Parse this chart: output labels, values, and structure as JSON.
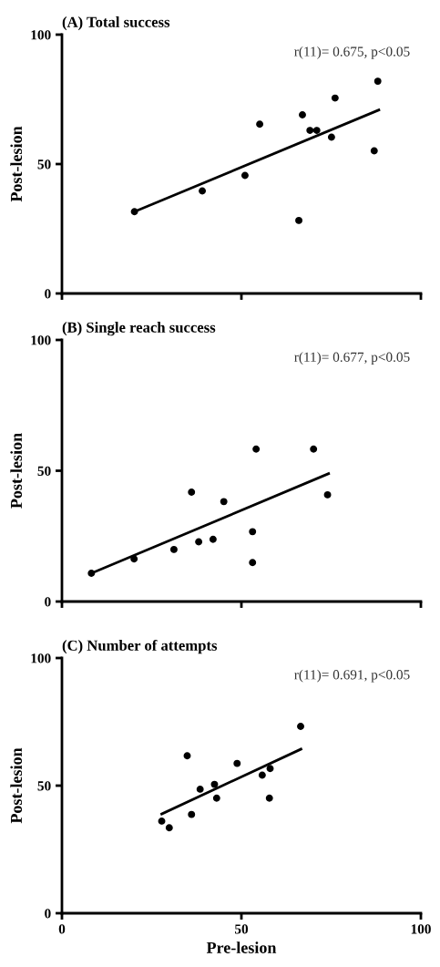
{
  "chart_data": [
    {
      "type": "scatter",
      "title": "(A) Total success",
      "ylabel": "Post-lesion",
      "annotations": [
        "r(11)= 0.675, p<0.05"
      ],
      "xlim": [
        0,
        100
      ],
      "xticks": [
        0,
        50,
        100
      ],
      "ylim": [
        0,
        100
      ],
      "yticks": [
        0,
        50,
        100
      ],
      "tick_labels": "y",
      "grid": false,
      "series": [
        {
          "color": "#000000",
          "marker": "circle",
          "x": [
            20.2,
            39.1,
            51.0,
            55.1,
            66.0,
            67.0,
            69.1,
            71.0,
            75.1,
            76.1,
            87.0,
            88.0
          ],
          "values": [
            31.6,
            39.6,
            45.6,
            65.4,
            28.2,
            69.0,
            63.0,
            63.0,
            60.4,
            75.5,
            55.1,
            82.0
          ]
        },
        {
          "type": "line",
          "color": "#000000",
          "marker": "none",
          "x": [
            20.2,
            88.3
          ],
          "values": [
            31.6,
            70.9
          ]
        }
      ]
    },
    {
      "type": "scatter",
      "title": "(B) Single reach success",
      "ylabel": "Post-lesion",
      "annotations": [
        "r(11)= 0.677, p<0.05"
      ],
      "xlim": [
        0,
        100
      ],
      "xticks": [
        0,
        50,
        100
      ],
      "ylim": [
        0,
        100
      ],
      "yticks": [
        0,
        50,
        100
      ],
      "tick_labels": "y",
      "grid": false,
      "series": [
        {
          "color": "#000000",
          "marker": "circle",
          "x": [
            8.2,
            20.1,
            31.2,
            36.1,
            38.1,
            42.1,
            45.1,
            53.1,
            53.1,
            54.1,
            70.1,
            74.0
          ],
          "values": [
            10.8,
            16.3,
            19.9,
            41.8,
            22.8,
            23.8,
            38.2,
            26.7,
            14.9,
            58.3,
            58.3,
            40.8
          ]
        },
        {
          "type": "line",
          "color": "#000000",
          "marker": "none",
          "x": [
            8.2,
            74.3
          ],
          "values": [
            10.8,
            48.9
          ]
        }
      ]
    },
    {
      "type": "scatter",
      "title": "(C) Number of attempts",
      "xlabel": "Pre-lesion",
      "ylabel": "Post-lesion",
      "annotations": [
        "r(11)= 0.691, p<0.05"
      ],
      "xlim": [
        0,
        100
      ],
      "xticks": [
        0,
        50,
        100
      ],
      "ylim": [
        0,
        100
      ],
      "yticks": [
        0,
        50,
        100
      ],
      "grid": false,
      "series": [
        {
          "color": "#000000",
          "marker": "circle",
          "x": [
            27.8,
            29.9,
            34.9,
            36.1,
            38.5,
            42.5,
            43.1,
            48.8,
            55.8,
            58.0,
            57.8,
            66.5
          ],
          "values": [
            36.1,
            33.5,
            61.7,
            38.7,
            48.6,
            50.5,
            45.1,
            58.7,
            54.1,
            56.7,
            45.1,
            73.2
          ]
        },
        {
          "type": "line",
          "color": "#000000",
          "marker": "none",
          "x": [
            27.8,
            66.6
          ],
          "values": [
            38.9,
            64.3
          ]
        }
      ]
    }
  ]
}
